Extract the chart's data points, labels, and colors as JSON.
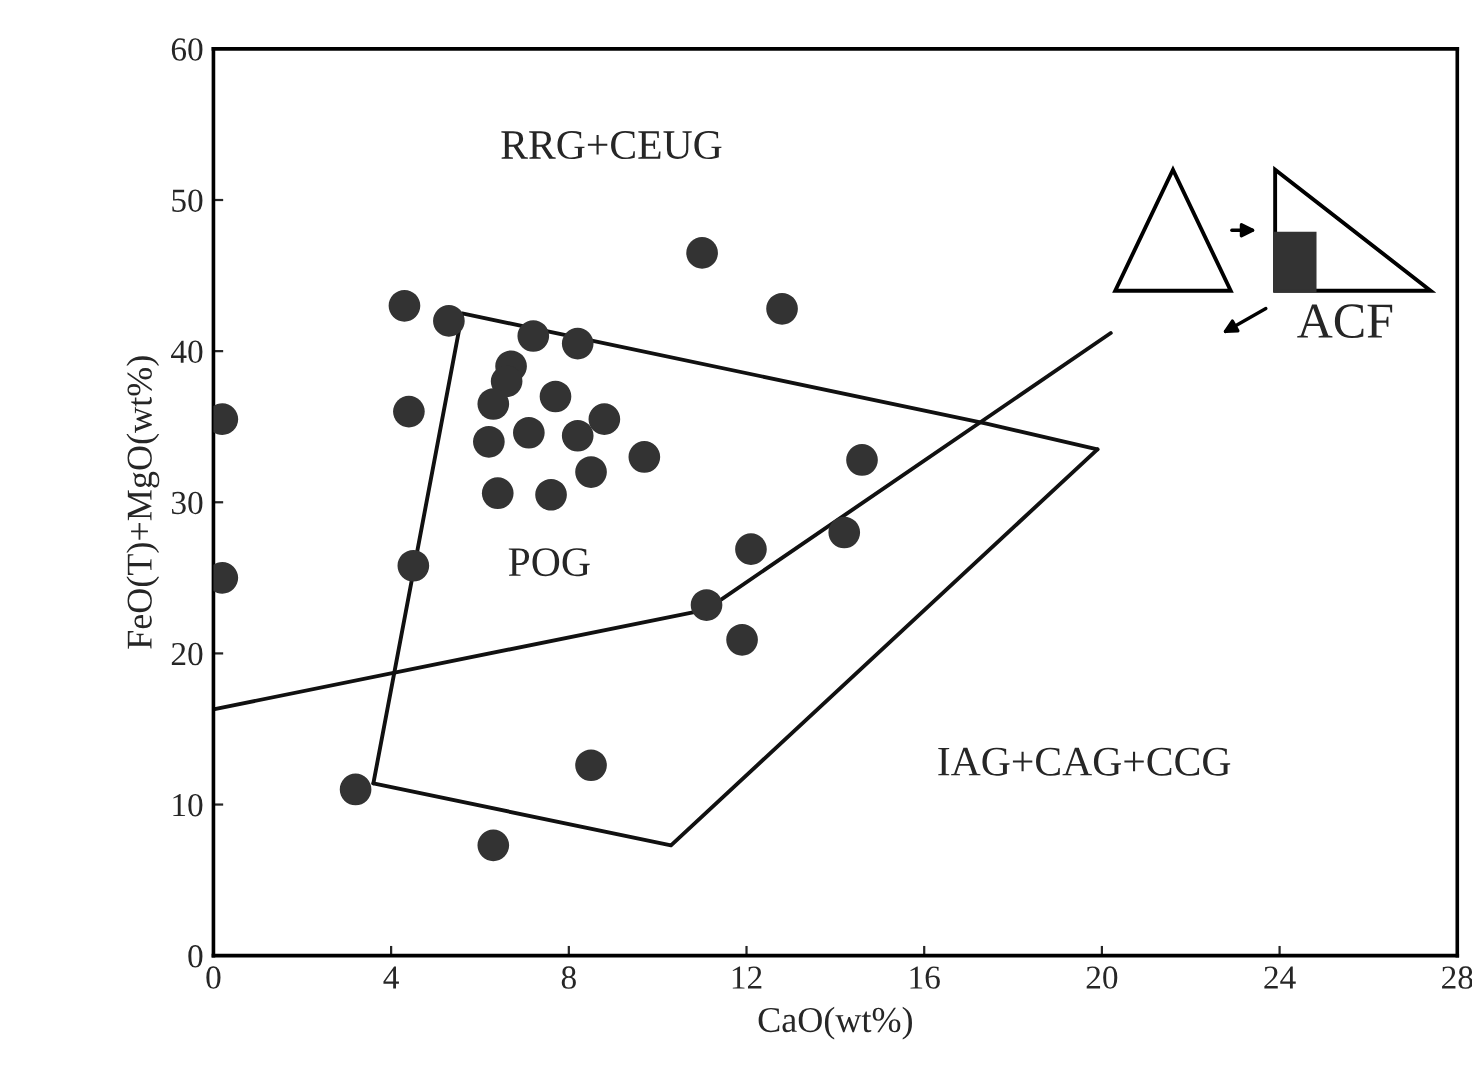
{
  "chart_data": {
    "type": "scatter",
    "xlabel": "CaO(wt%)",
    "ylabel": "FeO(T)+MgO(wt%)",
    "xlim": [
      0,
      28
    ],
    "ylim": [
      0,
      60
    ],
    "xticks": [
      0,
      4,
      8,
      12,
      16,
      20,
      24,
      28
    ],
    "yticks": [
      0,
      10,
      20,
      30,
      40,
      50,
      60
    ],
    "grid": false,
    "series": [
      {
        "color": "#333333",
        "marker": "circle",
        "x": [
          0.2,
          0.2,
          4.3,
          5.3,
          7.2,
          8.2,
          4.4,
          6.7,
          6.6,
          6.3,
          7.7,
          6.2,
          7.1,
          8.8,
          8.2,
          8.5,
          9.7,
          6.4,
          7.6,
          11,
          12.8,
          14.6,
          14.2,
          12.1,
          11.1,
          11.9,
          4.5,
          3.2,
          6.3,
          8.5
        ],
        "values": [
          35.5,
          25,
          43,
          42,
          41,
          40.5,
          36,
          39,
          38,
          36.5,
          37,
          34,
          34.6,
          35.5,
          34.4,
          32,
          33,
          30.6,
          30.5,
          46.5,
          42.8,
          32.8,
          28,
          26.9,
          23.2,
          20.9,
          25.8,
          11,
          7.3,
          12.6
        ]
      },
      {
        "type": "line",
        "color": "#111111",
        "marker": "none",
        "line_style": "solid",
        "x": [
          0,
          11.1,
          20.2
        ],
        "values": [
          16.3,
          22.9,
          41.2
        ]
      },
      {
        "type": "line",
        "color": "#111111",
        "marker": "none",
        "line_style": "solid",
        "x": [
          3.6,
          5.6,
          17.4,
          19.9
        ],
        "values": [
          11.4,
          42.5,
          35.2,
          33.5
        ]
      },
      {
        "type": "line",
        "color": "#111111",
        "marker": "none",
        "line_style": "solid",
        "x": [
          3.6,
          10.3,
          19.9
        ],
        "values": [
          11.4,
          7.3,
          33.5
        ]
      }
    ],
    "annotations": [
      "RRG+CEUG",
      "POG",
      "IAG+CAG+CCG",
      "ACF"
    ]
  }
}
